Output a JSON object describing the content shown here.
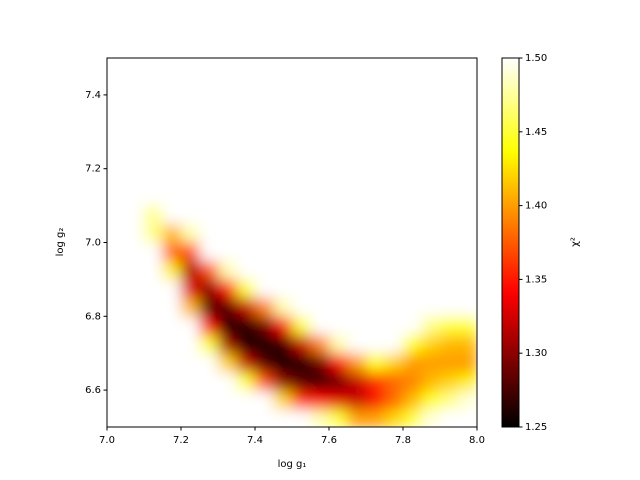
{
  "chart_data": {
    "type": "heatmap",
    "xlabel": "log g₁",
    "ylabel": "log g₂",
    "colorbar_label": "χ²",
    "colormap": "hot",
    "xbins": [
      7.0,
      7.05,
      7.1,
      7.15,
      7.2,
      7.25,
      7.3,
      7.35,
      7.4,
      7.45,
      7.5,
      7.55,
      7.6,
      7.65,
      7.7,
      7.75,
      7.8,
      7.85,
      7.9,
      7.95,
      8.0
    ],
    "ybins": [
      6.5,
      6.55,
      6.6,
      6.65,
      6.7,
      6.75,
      6.8,
      6.85,
      6.9,
      6.95,
      7.0,
      7.05,
      7.1,
      7.15,
      7.2,
      7.25,
      7.3,
      7.35,
      7.4,
      7.45,
      7.5
    ],
    "z": [
      [
        1.5,
        1.5,
        1.5,
        1.5,
        1.5,
        1.5,
        1.5,
        1.5,
        1.5,
        1.5,
        1.5,
        1.48,
        1.45,
        1.4,
        1.4,
        1.42,
        1.45,
        1.49,
        1.5,
        1.5
      ],
      [
        1.5,
        1.5,
        1.5,
        1.5,
        1.5,
        1.5,
        1.5,
        1.5,
        1.5,
        1.42,
        1.36,
        1.34,
        1.33,
        1.32,
        1.34,
        1.38,
        1.41,
        1.44,
        1.47,
        1.49
      ],
      [
        1.5,
        1.5,
        1.5,
        1.5,
        1.5,
        1.5,
        1.5,
        1.45,
        1.37,
        1.3,
        1.28,
        1.27,
        1.29,
        1.32,
        1.36,
        1.38,
        1.39,
        1.41,
        1.42,
        1.43
      ],
      [
        1.5,
        1.5,
        1.5,
        1.5,
        1.5,
        1.5,
        1.42,
        1.32,
        1.28,
        1.25,
        1.26,
        1.29,
        1.34,
        1.4,
        1.44,
        1.42,
        1.4,
        1.4,
        1.4,
        1.4
      ],
      [
        1.5,
        1.5,
        1.5,
        1.5,
        1.5,
        1.45,
        1.31,
        1.26,
        1.25,
        1.27,
        1.32,
        1.39,
        1.48,
        1.5,
        1.5,
        1.5,
        1.44,
        1.42,
        1.41,
        1.41
      ],
      [
        1.5,
        1.5,
        1.5,
        1.5,
        1.5,
        1.34,
        1.26,
        1.26,
        1.29,
        1.34,
        1.45,
        1.5,
        1.5,
        1.5,
        1.5,
        1.5,
        1.5,
        1.47,
        1.45,
        1.45
      ],
      [
        1.5,
        1.5,
        1.5,
        1.5,
        1.41,
        1.28,
        1.28,
        1.32,
        1.39,
        1.48,
        1.5,
        1.5,
        1.5,
        1.5,
        1.5,
        1.5,
        1.5,
        1.5,
        1.5,
        1.5
      ],
      [
        1.5,
        1.5,
        1.5,
        1.5,
        1.33,
        1.3,
        1.35,
        1.45,
        1.5,
        1.5,
        1.5,
        1.5,
        1.5,
        1.5,
        1.5,
        1.5,
        1.5,
        1.5,
        1.5,
        1.5
      ],
      [
        1.5,
        1.5,
        1.5,
        1.43,
        1.31,
        1.37,
        1.48,
        1.5,
        1.5,
        1.5,
        1.5,
        1.5,
        1.5,
        1.5,
        1.5,
        1.5,
        1.5,
        1.5,
        1.5,
        1.5
      ],
      [
        1.5,
        1.5,
        1.5,
        1.38,
        1.37,
        1.5,
        1.5,
        1.5,
        1.5,
        1.5,
        1.5,
        1.5,
        1.5,
        1.5,
        1.5,
        1.5,
        1.5,
        1.5,
        1.5,
        1.5
      ],
      [
        1.5,
        1.5,
        1.47,
        1.41,
        1.48,
        1.5,
        1.5,
        1.5,
        1.5,
        1.5,
        1.5,
        1.5,
        1.5,
        1.5,
        1.5,
        1.5,
        1.5,
        1.5,
        1.5,
        1.5
      ],
      [
        1.5,
        1.5,
        1.47,
        1.5,
        1.5,
        1.5,
        1.5,
        1.5,
        1.5,
        1.5,
        1.5,
        1.5,
        1.5,
        1.5,
        1.5,
        1.5,
        1.5,
        1.5,
        1.5,
        1.5
      ],
      [
        1.5,
        1.5,
        1.5,
        1.5,
        1.5,
        1.5,
        1.5,
        1.5,
        1.5,
        1.5,
        1.5,
        1.5,
        1.5,
        1.5,
        1.5,
        1.5,
        1.5,
        1.5,
        1.5,
        1.5
      ],
      [
        1.5,
        1.5,
        1.5,
        1.5,
        1.5,
        1.5,
        1.5,
        1.5,
        1.5,
        1.5,
        1.5,
        1.5,
        1.5,
        1.5,
        1.5,
        1.5,
        1.5,
        1.5,
        1.5,
        1.5
      ],
      [
        1.5,
        1.5,
        1.5,
        1.5,
        1.5,
        1.5,
        1.5,
        1.5,
        1.5,
        1.5,
        1.5,
        1.5,
        1.5,
        1.5,
        1.5,
        1.5,
        1.5,
        1.5,
        1.5,
        1.5
      ],
      [
        1.5,
        1.5,
        1.5,
        1.5,
        1.5,
        1.5,
        1.5,
        1.5,
        1.5,
        1.5,
        1.5,
        1.5,
        1.5,
        1.5,
        1.5,
        1.5,
        1.5,
        1.5,
        1.5,
        1.5
      ],
      [
        1.5,
        1.5,
        1.5,
        1.5,
        1.5,
        1.5,
        1.5,
        1.5,
        1.5,
        1.5,
        1.5,
        1.5,
        1.5,
        1.5,
        1.5,
        1.5,
        1.5,
        1.5,
        1.5,
        1.5
      ],
      [
        1.5,
        1.5,
        1.5,
        1.5,
        1.5,
        1.5,
        1.5,
        1.5,
        1.5,
        1.5,
        1.5,
        1.5,
        1.5,
        1.5,
        1.5,
        1.5,
        1.5,
        1.5,
        1.5,
        1.5
      ],
      [
        1.5,
        1.5,
        1.5,
        1.5,
        1.5,
        1.5,
        1.5,
        1.5,
        1.5,
        1.5,
        1.5,
        1.5,
        1.5,
        1.5,
        1.5,
        1.5,
        1.5,
        1.5,
        1.5,
        1.5
      ],
      [
        1.5,
        1.5,
        1.5,
        1.5,
        1.5,
        1.5,
        1.5,
        1.5,
        1.5,
        1.5,
        1.5,
        1.5,
        1.5,
        1.5,
        1.5,
        1.5,
        1.5,
        1.5,
        1.5,
        1.5
      ]
    ],
    "xlim": [
      7.0,
      8.0
    ],
    "xticks": [
      {
        "value": 7.0,
        "label": "7.0"
      },
      7.2,
      7.4,
      7.6,
      7.8,
      {
        "value": 8.0,
        "label": "8.0"
      }
    ],
    "ylim": [
      6.5,
      7.5
    ],
    "yticks": [
      6.6,
      6.8,
      {
        "value": 7.0,
        "label": "7.0"
      },
      7.2,
      7.4
    ],
    "clim": [
      1.25,
      1.5
    ],
    "cticks": [
      1.25,
      {
        "value": 1.3,
        "label": "1.30"
      },
      1.35,
      {
        "value": 1.4,
        "label": "1.40"
      },
      1.45,
      {
        "value": 1.5,
        "label": "1.50"
      }
    ]
  }
}
